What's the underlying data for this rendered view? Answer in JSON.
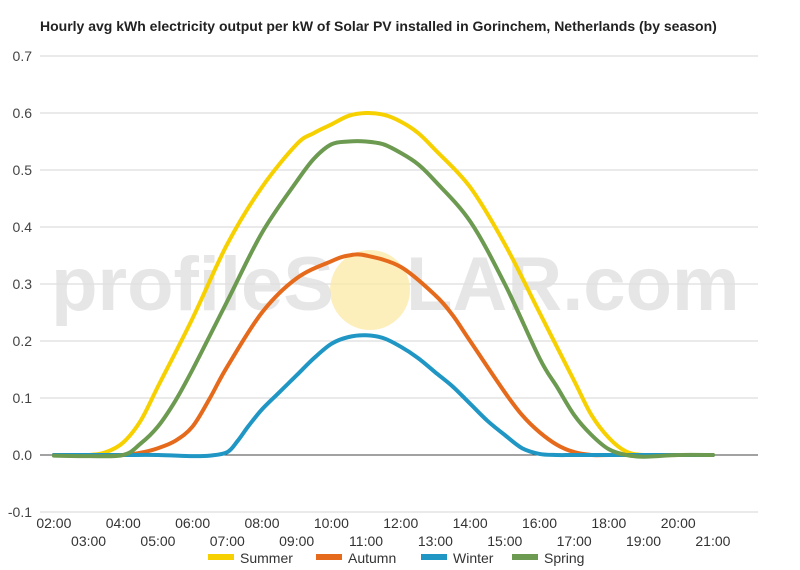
{
  "chart_data": {
    "type": "line",
    "title": "Hourly avg kWh electricity output per kW of Solar PV installed in Gorinchem, Netherlands (by season)",
    "watermark": {
      "left": "profileS",
      "right": "LAR.com",
      "circle_color": "#fbe9a6"
    },
    "xlabel": "",
    "ylabel": "",
    "ylim": [
      -0.1,
      0.7
    ],
    "yticks": [
      {
        "value": -0.1,
        "label": "-0.1"
      },
      {
        "value": 0.0,
        "label": "0.0"
      },
      {
        "value": 0.1,
        "label": "0.1"
      },
      {
        "value": 0.2,
        "label": "0.2"
      },
      {
        "value": 0.3,
        "label": "0.3"
      },
      {
        "value": 0.4,
        "label": "0.4"
      },
      {
        "value": 0.5,
        "label": "0.5"
      },
      {
        "value": 0.6,
        "label": "0.6"
      },
      {
        "value": 0.7,
        "label": "0.7"
      }
    ],
    "xlim": [
      1.6,
      22.3
    ],
    "xticks": [
      {
        "value": 2,
        "label": "02:00",
        "row": 1
      },
      {
        "value": 3,
        "label": "03:00",
        "row": 2
      },
      {
        "value": 4,
        "label": "04:00",
        "row": 1
      },
      {
        "value": 5,
        "label": "05:00",
        "row": 2
      },
      {
        "value": 6,
        "label": "06:00",
        "row": 1
      },
      {
        "value": 7,
        "label": "07:00",
        "row": 2
      },
      {
        "value": 8,
        "label": "08:00",
        "row": 1
      },
      {
        "value": 9,
        "label": "09:00",
        "row": 2
      },
      {
        "value": 10,
        "label": "10:00",
        "row": 1
      },
      {
        "value": 11,
        "label": "11:00",
        "row": 2
      },
      {
        "value": 12,
        "label": "12:00",
        "row": 1
      },
      {
        "value": 13,
        "label": "13:00",
        "row": 2
      },
      {
        "value": 14,
        "label": "14:00",
        "row": 1
      },
      {
        "value": 15,
        "label": "15:00",
        "row": 2
      },
      {
        "value": 16,
        "label": "16:00",
        "row": 1
      },
      {
        "value": 17,
        "label": "17:00",
        "row": 2
      },
      {
        "value": 18,
        "label": "18:00",
        "row": 1
      },
      {
        "value": 19,
        "label": "19:00",
        "row": 2
      },
      {
        "value": 20,
        "label": "20:00",
        "row": 1
      },
      {
        "value": 21,
        "label": "21:00",
        "row": 2
      }
    ],
    "grid": true,
    "legend_position": "bottom",
    "series": [
      {
        "name": "Summer",
        "color": "#f7d000",
        "points": [
          [
            2,
            0
          ],
          [
            3,
            0
          ],
          [
            3.5,
            0.005
          ],
          [
            4,
            0.022
          ],
          [
            4.5,
            0.06
          ],
          [
            5,
            0.12
          ],
          [
            6,
            0.24
          ],
          [
            7,
            0.37
          ],
          [
            8,
            0.47
          ],
          [
            9,
            0.545
          ],
          [
            9.5,
            0.565
          ],
          [
            10,
            0.58
          ],
          [
            10.5,
            0.595
          ],
          [
            11,
            0.6
          ],
          [
            11.5,
            0.597
          ],
          [
            12,
            0.585
          ],
          [
            12.5,
            0.565
          ],
          [
            13,
            0.535
          ],
          [
            14,
            0.47
          ],
          [
            15,
            0.37
          ],
          [
            16,
            0.25
          ],
          [
            17,
            0.13
          ],
          [
            17.5,
            0.07
          ],
          [
            18,
            0.03
          ],
          [
            18.5,
            0.006
          ],
          [
            19,
            0
          ],
          [
            20,
            0
          ],
          [
            21,
            0
          ]
        ]
      },
      {
        "name": "Autumn",
        "color": "#e56a1c",
        "points": [
          [
            2,
            0
          ],
          [
            3,
            0
          ],
          [
            4,
            0
          ],
          [
            4.5,
            0.004
          ],
          [
            5,
            0.012
          ],
          [
            5.5,
            0.025
          ],
          [
            6,
            0.05
          ],
          [
            6.5,
            0.1
          ],
          [
            7,
            0.155
          ],
          [
            8,
            0.25
          ],
          [
            9,
            0.31
          ],
          [
            10,
            0.34
          ],
          [
            10.5,
            0.35
          ],
          [
            11,
            0.35
          ],
          [
            12,
            0.33
          ],
          [
            13,
            0.28
          ],
          [
            13.5,
            0.245
          ],
          [
            14,
            0.2
          ],
          [
            15,
            0.11
          ],
          [
            15.5,
            0.07
          ],
          [
            16,
            0.04
          ],
          [
            16.5,
            0.018
          ],
          [
            17,
            0.005
          ],
          [
            17.5,
            0
          ],
          [
            18,
            0
          ],
          [
            19,
            0
          ],
          [
            20,
            0
          ],
          [
            21,
            0
          ]
        ]
      },
      {
        "name": "Winter",
        "color": "#1f96c4",
        "points": [
          [
            2,
            0
          ],
          [
            3,
            0
          ],
          [
            4,
            0
          ],
          [
            5,
            0
          ],
          [
            6,
            -0.002
          ],
          [
            6.5,
            -0.001
          ],
          [
            7,
            0.005
          ],
          [
            7.3,
            0.025
          ],
          [
            7.6,
            0.05
          ],
          [
            8,
            0.08
          ],
          [
            8.5,
            0.11
          ],
          [
            9,
            0.14
          ],
          [
            9.5,
            0.17
          ],
          [
            10,
            0.195
          ],
          [
            10.5,
            0.207
          ],
          [
            11,
            0.21
          ],
          [
            11.5,
            0.205
          ],
          [
            12,
            0.19
          ],
          [
            12.5,
            0.17
          ],
          [
            13,
            0.145
          ],
          [
            13.5,
            0.12
          ],
          [
            14,
            0.09
          ],
          [
            14.5,
            0.06
          ],
          [
            15,
            0.035
          ],
          [
            15.5,
            0.012
          ],
          [
            16,
            0.002
          ],
          [
            16.5,
            0
          ],
          [
            17,
            0
          ],
          [
            18,
            0
          ],
          [
            19,
            0
          ],
          [
            20,
            0
          ],
          [
            21,
            0
          ]
        ]
      },
      {
        "name": "Spring",
        "color": "#6b9a50",
        "points": [
          [
            2,
            -0.001
          ],
          [
            3,
            -0.002
          ],
          [
            4,
            0
          ],
          [
            4.5,
            0.02
          ],
          [
            5,
            0.05
          ],
          [
            5.5,
            0.095
          ],
          [
            6,
            0.15
          ],
          [
            7,
            0.27
          ],
          [
            8,
            0.39
          ],
          [
            9,
            0.48
          ],
          [
            9.5,
            0.52
          ],
          [
            10,
            0.545
          ],
          [
            10.5,
            0.55
          ],
          [
            11,
            0.55
          ],
          [
            11.5,
            0.545
          ],
          [
            12,
            0.53
          ],
          [
            12.5,
            0.51
          ],
          [
            13,
            0.48
          ],
          [
            14,
            0.41
          ],
          [
            15,
            0.3
          ],
          [
            16,
            0.17
          ],
          [
            16.5,
            0.12
          ],
          [
            17,
            0.07
          ],
          [
            17.5,
            0.035
          ],
          [
            18,
            0.01
          ],
          [
            18.5,
            0
          ],
          [
            19,
            -0.003
          ],
          [
            20,
            0
          ],
          [
            21,
            0
          ]
        ]
      }
    ]
  }
}
